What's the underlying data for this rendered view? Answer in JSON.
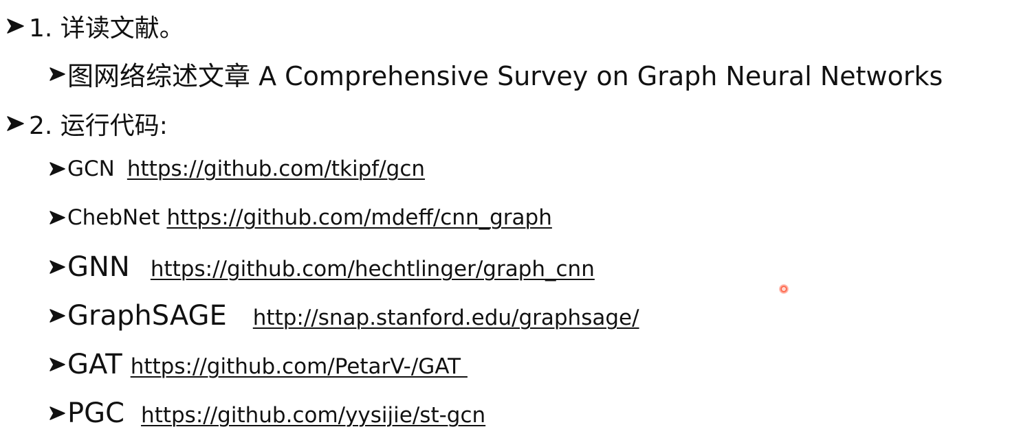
{
  "items": [
    {
      "text": "1. 详读文献。"
    },
    {
      "text": "图网络综述文章 A Comprehensive Survey on Graph Neural Networks"
    },
    {
      "text": "2. 运行代码:"
    }
  ],
  "repos": [
    {
      "name": "GCN",
      "url": "https://github.com/tkipf/gcn"
    },
    {
      "name": "ChebNet",
      "url": "https://github.com/mdeff/cnn_graph"
    },
    {
      "name": "GNN",
      "url": "https://github.com/hechtlinger/graph_cnn"
    },
    {
      "name": "GraphSAGE",
      "url": "http://snap.stanford.edu/graphsage/"
    },
    {
      "name": "GAT",
      "url": "https://github.com/PetarV-/GAT "
    },
    {
      "name": "PGC",
      "url": "https://github.com/yysijie/st-gcn"
    }
  ],
  "icons": {
    "bullet": "arrow-bullet-icon",
    "pointer": "laser-pointer-icon"
  },
  "colors": {
    "text": "#111111",
    "pointer": "#ff3a1e"
  }
}
